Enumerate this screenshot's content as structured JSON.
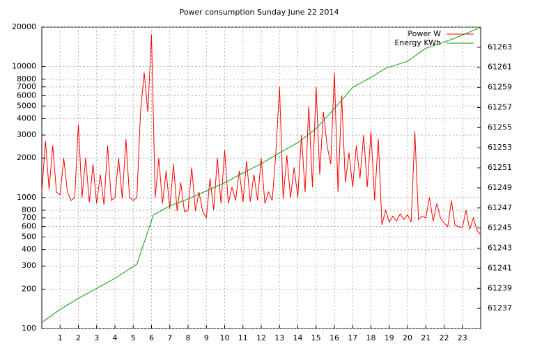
{
  "chart_data": {
    "type": "line",
    "title": "Power consumption Sunday June 22 2014",
    "xlim": [
      0,
      24
    ],
    "xticks": [
      1,
      2,
      3,
      4,
      5,
      6,
      7,
      8,
      9,
      10,
      11,
      12,
      13,
      14,
      15,
      16,
      17,
      18,
      19,
      20,
      21,
      22,
      23
    ],
    "ylim": [
      100,
      20000
    ],
    "yscale": "log",
    "yticks": [
      100,
      200,
      300,
      400,
      500,
      600,
      700,
      800,
      1000,
      2000,
      3000,
      4000,
      5000,
      6000,
      7000,
      8000,
      10000,
      20000
    ],
    "y2lim": [
      61235,
      61265
    ],
    "y2ticks": [
      61237,
      61239,
      61241,
      61243,
      61245,
      61247,
      61249,
      61251,
      61253,
      61255,
      61257,
      61259,
      61261,
      61263
    ],
    "grid": true,
    "legend": "top-right",
    "series": [
      {
        "name": "Power W",
        "color": "#ff0000",
        "x": [
          0,
          0.2,
          0.4,
          0.6,
          0.8,
          1,
          1.2,
          1.4,
          1.6,
          1.8,
          2,
          2.2,
          2.4,
          2.6,
          2.8,
          3,
          3.2,
          3.4,
          3.6,
          3.8,
          4,
          4.2,
          4.4,
          4.6,
          4.8,
          5,
          5.2,
          5.4,
          5.6,
          5.8,
          6,
          6.2,
          6.4,
          6.6,
          6.8,
          7,
          7.2,
          7.4,
          7.6,
          7.8,
          8,
          8.2,
          8.4,
          8.6,
          8.8,
          9,
          9.2,
          9.4,
          9.6,
          9.8,
          10,
          10.2,
          10.4,
          10.6,
          10.8,
          11,
          11.2,
          11.4,
          11.6,
          11.8,
          12,
          12.2,
          12.4,
          12.6,
          12.8,
          13,
          13.2,
          13.4,
          13.6,
          13.8,
          14,
          14.2,
          14.4,
          14.6,
          14.8,
          15,
          15.2,
          15.4,
          15.6,
          15.8,
          16,
          16.2,
          16.4,
          16.6,
          16.8,
          17,
          17.2,
          17.4,
          17.6,
          17.8,
          18,
          18.2,
          18.4,
          18.6,
          18.8,
          19,
          19.2,
          19.4,
          19.6,
          19.8,
          20,
          20.2,
          20.4,
          20.6,
          20.8,
          21,
          21.2,
          21.4,
          21.6,
          21.8,
          22,
          22.2,
          22.4,
          22.6,
          22.8,
          23,
          23.2,
          23.4,
          23.6,
          23.8,
          24
        ],
        "values": [
          1100,
          2700,
          1150,
          2500,
          1100,
          1050,
          2000,
          1100,
          950,
          1000,
          3600,
          1000,
          2000,
          920,
          1800,
          900,
          1500,
          880,
          2500,
          950,
          1000,
          2000,
          980,
          2800,
          1000,
          950,
          1000,
          4500,
          9000,
          4500,
          17500,
          1000,
          2000,
          900,
          1600,
          820,
          1800,
          790,
          1300,
          780,
          800,
          1700,
          790,
          1100,
          780,
          700,
          1400,
          800,
          2000,
          900,
          2300,
          900,
          1200,
          950,
          1600,
          920,
          1900,
          930,
          1500,
          950,
          2000,
          900,
          1100,
          950,
          2200,
          7000,
          980,
          2100,
          1000,
          1700,
          1000,
          3000,
          1100,
          5000,
          1200,
          7000,
          1500,
          4500,
          2500,
          1800,
          9000,
          1100,
          6000,
          1300,
          2200,
          1200,
          2500,
          1400,
          3000,
          1200,
          3200,
          950,
          2800,
          620,
          800,
          650,
          720,
          660,
          750,
          680,
          740,
          650,
          3200,
          680,
          720,
          700,
          1000,
          660,
          900,
          700,
          640,
          600,
          950,
          610,
          600,
          590,
          800,
          570,
          700,
          560,
          520
        ]
      },
      {
        "name": "Energy KWh",
        "color": "#00a000",
        "axis": "y2",
        "x": [
          0,
          1,
          2,
          3,
          4,
          5.2,
          6.1,
          7,
          8,
          9,
          10,
          11,
          12,
          13,
          14,
          15,
          16,
          17,
          18,
          18.8,
          20,
          21,
          22,
          23,
          24
        ],
        "values": [
          61235.6,
          61236.9,
          61238,
          61239,
          61240,
          61241.4,
          61246.3,
          61247.2,
          61247.9,
          61248.7,
          61249.5,
          61250.5,
          61251.4,
          61252.5,
          61253.5,
          61254.9,
          61256.9,
          61259,
          61260,
          61260.9,
          61261.6,
          61262.9,
          61263.5,
          61264.2,
          61265
        ]
      }
    ]
  }
}
